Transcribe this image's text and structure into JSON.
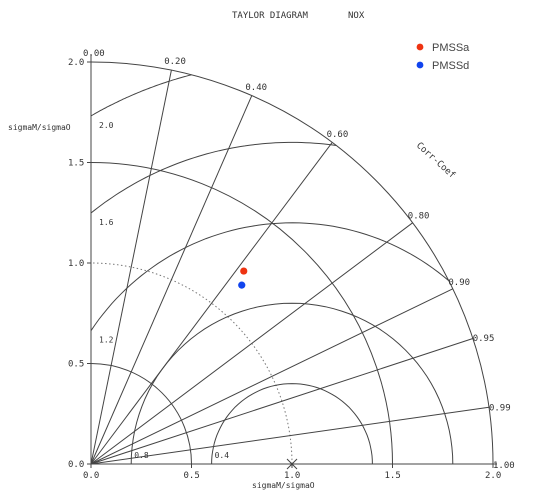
{
  "chart_data": {
    "type": "scatter",
    "diagram": "taylor",
    "title_left": "TAYLOR DIAGRAM",
    "title_right": "NOX",
    "xlabel": "sigmaM/sigmaO",
    "ylabel": "sigmaM/sigmaO",
    "corr_label": "Corr-Coef",
    "xlim": [
      0,
      2.0
    ],
    "ylim": [
      0,
      2.0
    ],
    "x_ticks": [
      "0.0",
      "0.5",
      "1.0",
      "1.5",
      "2.0"
    ],
    "y_ticks": [
      "0.0",
      "0.5",
      "1.0",
      "1.5",
      "2.0"
    ],
    "correlation_labels": [
      "0.00",
      "0.20",
      "0.40",
      "0.60",
      "0.80",
      "0.90",
      "0.95",
      "0.99",
      "1.00"
    ],
    "rms_labels": [
      "2.0",
      "1.6",
      "1.2",
      "0.8",
      "0.4"
    ],
    "series": [
      {
        "name": "PMSSa",
        "color": "#ee3311",
        "x": 0.76,
        "y": 0.96
      },
      {
        "name": "PMSSd",
        "color": "#1144ee",
        "x": 0.75,
        "y": 0.89
      }
    ],
    "legend_position": "top-right",
    "grid": true
  }
}
